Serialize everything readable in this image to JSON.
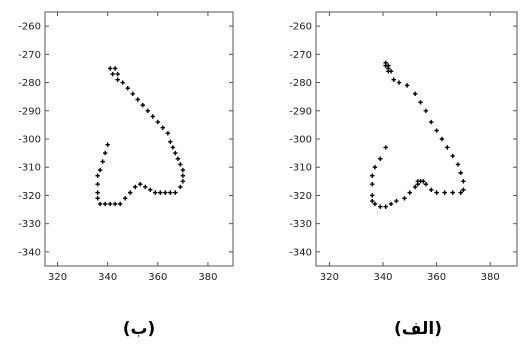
{
  "chart_data": [
    {
      "type": "scatter",
      "caption": "(ب)",
      "xlim": [
        315,
        390
      ],
      "ylim": [
        -345,
        -255
      ],
      "xticks": [
        "320",
        "340",
        "360",
        "380"
      ],
      "yticks": [
        "-260",
        "-270",
        "-280",
        "-290",
        "-300",
        "-310",
        "-320",
        "-330",
        "-340"
      ],
      "grid": false,
      "points": [
        [
          341,
          -275
        ],
        [
          343,
          -275
        ],
        [
          342,
          -277
        ],
        [
          344,
          -277
        ],
        [
          344,
          -279
        ],
        [
          346,
          -280
        ],
        [
          348,
          -282
        ],
        [
          350,
          -284
        ],
        [
          352,
          -286
        ],
        [
          354,
          -288
        ],
        [
          356,
          -290
        ],
        [
          358,
          -292
        ],
        [
          360,
          -294
        ],
        [
          362,
          -296
        ],
        [
          364,
          -298
        ],
        [
          365,
          -301
        ],
        [
          366,
          -303
        ],
        [
          367,
          -305
        ],
        [
          368,
          -307
        ],
        [
          369,
          -309
        ],
        [
          370,
          -311
        ],
        [
          370,
          -313
        ],
        [
          370,
          -315
        ],
        [
          369,
          -317
        ],
        [
          367,
          -319
        ],
        [
          365,
          -319
        ],
        [
          363,
          -319
        ],
        [
          361,
          -319
        ],
        [
          359,
          -319
        ],
        [
          357,
          -318
        ],
        [
          355,
          -317
        ],
        [
          353,
          -316
        ],
        [
          351,
          -317
        ],
        [
          349,
          -319
        ],
        [
          347,
          -321
        ],
        [
          345,
          -323
        ],
        [
          343,
          -323
        ],
        [
          341,
          -323
        ],
        [
          339,
          -323
        ],
        [
          337,
          -323
        ],
        [
          336,
          -321
        ],
        [
          336,
          -319
        ],
        [
          336,
          -316
        ],
        [
          336,
          -313
        ],
        [
          337,
          -311
        ],
        [
          338,
          -308
        ],
        [
          339,
          -305
        ],
        [
          340,
          -302
        ]
      ]
    },
    {
      "type": "scatter",
      "caption": "(الف)",
      "xlim": [
        315,
        390
      ],
      "ylim": [
        -345,
        -255
      ],
      "xticks": [
        "320",
        "340",
        "360",
        "380"
      ],
      "yticks": [
        "-260",
        "-270",
        "-280",
        "-290",
        "-300",
        "-310",
        "-320",
        "-330",
        "-340"
      ],
      "grid": false,
      "points": [
        [
          341,
          -273
        ],
        [
          341,
          -274
        ],
        [
          342,
          -274
        ],
        [
          342,
          -275
        ],
        [
          343,
          -276
        ],
        [
          342,
          -276
        ],
        [
          344,
          -279
        ],
        [
          346,
          -280
        ],
        [
          349,
          -281
        ],
        [
          352,
          -284
        ],
        [
          354,
          -287
        ],
        [
          356,
          -290
        ],
        [
          358,
          -294
        ],
        [
          360,
          -297
        ],
        [
          362,
          -300
        ],
        [
          364,
          -303
        ],
        [
          366,
          -306
        ],
        [
          368,
          -309
        ],
        [
          369,
          -312
        ],
        [
          370,
          -315
        ],
        [
          370,
          -318
        ],
        [
          369,
          -319
        ],
        [
          366,
          -319
        ],
        [
          363,
          -319
        ],
        [
          360,
          -319
        ],
        [
          358,
          -318
        ],
        [
          356,
          -316
        ],
        [
          355,
          -315
        ],
        [
          354,
          -315
        ],
        [
          353,
          -315
        ],
        [
          353,
          -316
        ],
        [
          352,
          -317
        ],
        [
          350,
          -319
        ],
        [
          348,
          -321
        ],
        [
          345,
          -322
        ],
        [
          343,
          -323
        ],
        [
          341,
          -324
        ],
        [
          339,
          -324
        ],
        [
          337,
          -323
        ],
        [
          336,
          -322
        ],
        [
          336,
          -320
        ],
        [
          336,
          -316
        ],
        [
          336,
          -313
        ],
        [
          337,
          -310
        ],
        [
          339,
          -307
        ],
        [
          341,
          -303
        ]
      ]
    }
  ]
}
